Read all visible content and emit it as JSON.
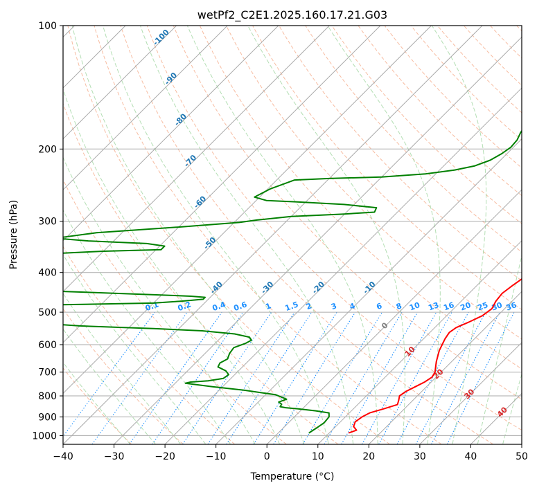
{
  "chart_data": {
    "type": "line",
    "subtype": "skew-T log-P diagram",
    "title": "wetPf2_C2E1.2025.160.17.21.G03",
    "xlabel": "Temperature (°C)",
    "ylabel": "Pressure (hPa)",
    "xlim": [
      -40,
      50
    ],
    "ylim": [
      1050,
      100
    ],
    "y_scale": "log",
    "x_ticks": [
      -40,
      -30,
      -20,
      -10,
      0,
      10,
      20,
      30,
      40,
      50
    ],
    "y_ticks": [
      1000,
      900,
      800,
      700,
      600,
      500,
      400,
      300,
      200,
      100
    ],
    "grid": true,
    "colors": {
      "temperature": "#ff0000",
      "dewpoint": "#008000",
      "isotherm": "#aaaaaa",
      "dry_adiabat": "#f4a582",
      "moist_adiabat": "#a6d8a6",
      "mixing_ratio": "#1e90ff",
      "isotherm_label": "#1f77b4",
      "moist_label": "#d62728",
      "zero_label": "#808080"
    },
    "series": [
      {
        "name": "",
        "role": "temperature",
        "points": [
          [
            13.8,
            985
          ],
          [
            14.8,
            970
          ],
          [
            13.5,
            950
          ],
          [
            12.9,
            925
          ],
          [
            13.3,
            900
          ],
          [
            14.0,
            880
          ],
          [
            16.0,
            860
          ],
          [
            17.8,
            840
          ],
          [
            17.2,
            820
          ],
          [
            16.5,
            800
          ],
          [
            16.9,
            780
          ],
          [
            17.8,
            760
          ],
          [
            18.7,
            740
          ],
          [
            19.2,
            720
          ],
          [
            18.8,
            700
          ],
          [
            17.9,
            680
          ],
          [
            17.0,
            660
          ],
          [
            16.2,
            640
          ],
          [
            15.4,
            620
          ],
          [
            14.8,
            600
          ],
          [
            14.2,
            580
          ],
          [
            13.8,
            560
          ],
          [
            14.2,
            545
          ],
          [
            15.5,
            530
          ],
          [
            17.0,
            510
          ],
          [
            17.5,
            490
          ],
          [
            16.8,
            470
          ],
          [
            16.5,
            450
          ],
          [
            17.0,
            430
          ],
          [
            17.7,
            410
          ],
          [
            17.8,
            400
          ],
          [
            17.2,
            385
          ],
          [
            16.2,
            370
          ],
          [
            15.5,
            360
          ],
          [
            15.0,
            345
          ],
          [
            14.5,
            330
          ],
          [
            13.2,
            315
          ],
          [
            12.3,
            300
          ],
          [
            11.8,
            285
          ],
          [
            11.5,
            270
          ],
          [
            10.5,
            255
          ],
          [
            9.2,
            240
          ],
          [
            7.6,
            225
          ],
          [
            5.8,
            210
          ],
          [
            4.6,
            195
          ],
          [
            4.2,
            180
          ],
          [
            4.0,
            170
          ],
          [
            4.5,
            160
          ],
          [
            4.6,
            150
          ],
          [
            4.6,
            140
          ],
          [
            5.0,
            130
          ],
          [
            5.3,
            120
          ],
          [
            5.8,
            110
          ],
          [
            6.3,
            100
          ]
        ]
      },
      {
        "name": "",
        "role": "dewpoint",
        "points": [
          [
            6.0,
            985
          ],
          [
            6.5,
            960
          ],
          [
            7.0,
            930
          ],
          [
            6.8,
            900
          ],
          [
            6.0,
            880
          ],
          [
            3.0,
            870
          ],
          [
            -1.0,
            860
          ],
          [
            -3.5,
            855
          ],
          [
            -4.8,
            850
          ],
          [
            -5.0,
            838
          ],
          [
            -6.0,
            828
          ],
          [
            -5.0,
            815
          ],
          [
            -8.0,
            795
          ],
          [
            -15.0,
            775
          ],
          [
            -22.0,
            760
          ],
          [
            -28.0,
            745
          ],
          [
            -27.2,
            740
          ],
          [
            -24.0,
            735
          ],
          [
            -21.5,
            725
          ],
          [
            -21.2,
            710
          ],
          [
            -22.5,
            695
          ],
          [
            -24.8,
            680
          ],
          [
            -25.2,
            665
          ],
          [
            -24.5,
            650
          ],
          [
            -25.2,
            630
          ],
          [
            -25.5,
            610
          ],
          [
            -24.0,
            595
          ],
          [
            -23.5,
            585
          ],
          [
            -24.5,
            575
          ],
          [
            -28.0,
            565
          ],
          [
            -35.0,
            555
          ],
          [
            -45.0,
            548
          ],
          [
            -60.0,
            540
          ],
          [
            -70.0,
            530
          ],
          [
            -75.0,
            522
          ],
          [
            -80.0,
            515
          ],
          [
            -82.0,
            500
          ],
          [
            -80.0,
            490
          ],
          [
            -70.0,
            480
          ],
          [
            -50.0,
            475
          ],
          [
            -45.0,
            470
          ],
          [
            -41.0,
            465
          ],
          [
            -41.0,
            460
          ],
          [
            -44.0,
            457
          ],
          [
            -52.0,
            453
          ],
          [
            -70.0,
            445
          ],
          [
            -85.0,
            420
          ],
          [
            -85.0,
            370
          ],
          [
            -80.0,
            360
          ],
          [
            -70.0,
            355
          ],
          [
            -59.0,
            352
          ],
          [
            -59.0,
            345
          ],
          [
            -63.0,
            340
          ],
          [
            -75.0,
            335
          ],
          [
            -82.0,
            330
          ],
          [
            -75.0,
            320
          ],
          [
            -60.0,
            310
          ],
          [
            -49.0,
            302
          ],
          [
            -46.0,
            298
          ],
          [
            -40.0,
            292
          ],
          [
            -30.0,
            288
          ],
          [
            -24.5,
            285
          ],
          [
            -25.0,
            278
          ],
          [
            -32.0,
            273
          ],
          [
            -42.0,
            269
          ],
          [
            -48.0,
            267
          ],
          [
            -51.0,
            262
          ],
          [
            -49.5,
            250
          ],
          [
            -46.5,
            238
          ],
          [
            -40.0,
            236
          ],
          [
            -30.0,
            234
          ],
          [
            -22.0,
            230
          ],
          [
            -17.0,
            225
          ],
          [
            -14.0,
            220
          ],
          [
            -12.0,
            213
          ],
          [
            -11.0,
            205
          ],
          [
            -10.5,
            198
          ],
          [
            -10.7,
            190
          ],
          [
            -11.5,
            182
          ],
          [
            -11.8,
            175
          ],
          [
            -11.5,
            168
          ],
          [
            -11.0,
            158
          ],
          [
            -10.8,
            150
          ],
          [
            -10.8,
            140
          ],
          [
            -10.5,
            130
          ],
          [
            -9.8,
            123
          ],
          [
            -9.2,
            116
          ],
          [
            -8.0,
            110
          ],
          [
            -7.0,
            105
          ],
          [
            -5.8,
            100
          ]
        ]
      }
    ],
    "isotherm_labels": [
      "-100",
      "-90",
      "-80",
      "-70",
      "-60",
      "-50",
      "-40",
      "-30",
      "-20",
      "-10"
    ],
    "mixing_ratio_labels": [
      "0.1",
      "0.2",
      "0.4",
      "0.6",
      "1",
      "1.5",
      "2",
      "3",
      "4",
      "6",
      "8",
      "10",
      "13",
      "16",
      "20",
      "25",
      "30",
      "36"
    ],
    "moist_adiabat_labels": [
      "0",
      "10",
      "20",
      "30",
      "40"
    ]
  }
}
